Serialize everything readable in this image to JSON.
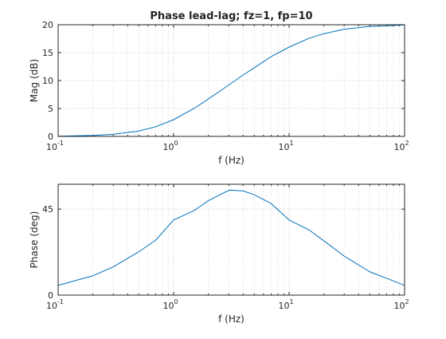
{
  "chart_data": [
    {
      "type": "line",
      "title": "Phase lead-lag; fz=1, fp=10",
      "xlabel": "f (Hz)",
      "ylabel": "Mag (dB)",
      "xscale": "log",
      "xlim": [
        0.1,
        100
      ],
      "ylim": [
        0,
        20
      ],
      "xticks": [
        0.1,
        1,
        10,
        100
      ],
      "xtick_labels": [
        {
          "base": "10",
          "exp": "-1"
        },
        {
          "base": "10",
          "exp": "0"
        },
        {
          "base": "10",
          "exp": "1"
        },
        {
          "base": "10",
          "exp": "2"
        }
      ],
      "yticks": [
        0,
        5,
        10,
        15,
        20
      ],
      "ytick_labels": [
        "0",
        "5",
        "10",
        "15",
        "20"
      ],
      "grid": "on, including minor lines on log axis",
      "line_color": "#0072bd",
      "series": [
        {
          "x": [
            0.1,
            0.2,
            0.3,
            0.5,
            0.7,
            1,
            1.5,
            2,
            3,
            4,
            5,
            7,
            10,
            15,
            20,
            30,
            50,
            70,
            100
          ],
          "values": [
            0.04,
            0.17,
            0.37,
            0.97,
            1.72,
            3.0,
            5.0,
            6.7,
            9.2,
            11.0,
            12.3,
            14.3,
            16.0,
            17.6,
            18.4,
            19.2,
            19.7,
            19.8,
            19.96
          ]
        }
      ]
    },
    {
      "type": "line",
      "title": "",
      "xlabel": "f (Hz)",
      "ylabel": "Phase (deg)",
      "xscale": "log",
      "xlim": [
        0.1,
        100
      ],
      "ylim": [
        0,
        58
      ],
      "xticks": [
        0.1,
        1,
        10,
        100
      ],
      "xtick_labels": [
        {
          "base": "10",
          "exp": "-1"
        },
        {
          "base": "10",
          "exp": "0"
        },
        {
          "base": "10",
          "exp": "1"
        },
        {
          "base": "10",
          "exp": "2"
        }
      ],
      "yticks": [
        0,
        45
      ],
      "ytick_labels": [
        "0",
        "45"
      ],
      "grid": "on, including minor lines on log axis",
      "line_color": "#0072bd",
      "series": [
        {
          "x": [
            0.1,
            0.2,
            0.3,
            0.5,
            0.7,
            1,
            1.5,
            2,
            3,
            3.16,
            4,
            5,
            7,
            10,
            15,
            20,
            30,
            50,
            70,
            100
          ],
          "values": [
            5.1,
            10.1,
            14.8,
            22.7,
            28.8,
            39.3,
            44.2,
            49.4,
            54.8,
            54.9,
            54.5,
            52.5,
            47.9,
            39.3,
            34.0,
            28.4,
            20.4,
            12.2,
            8.8,
            5.1
          ]
        }
      ]
    }
  ]
}
